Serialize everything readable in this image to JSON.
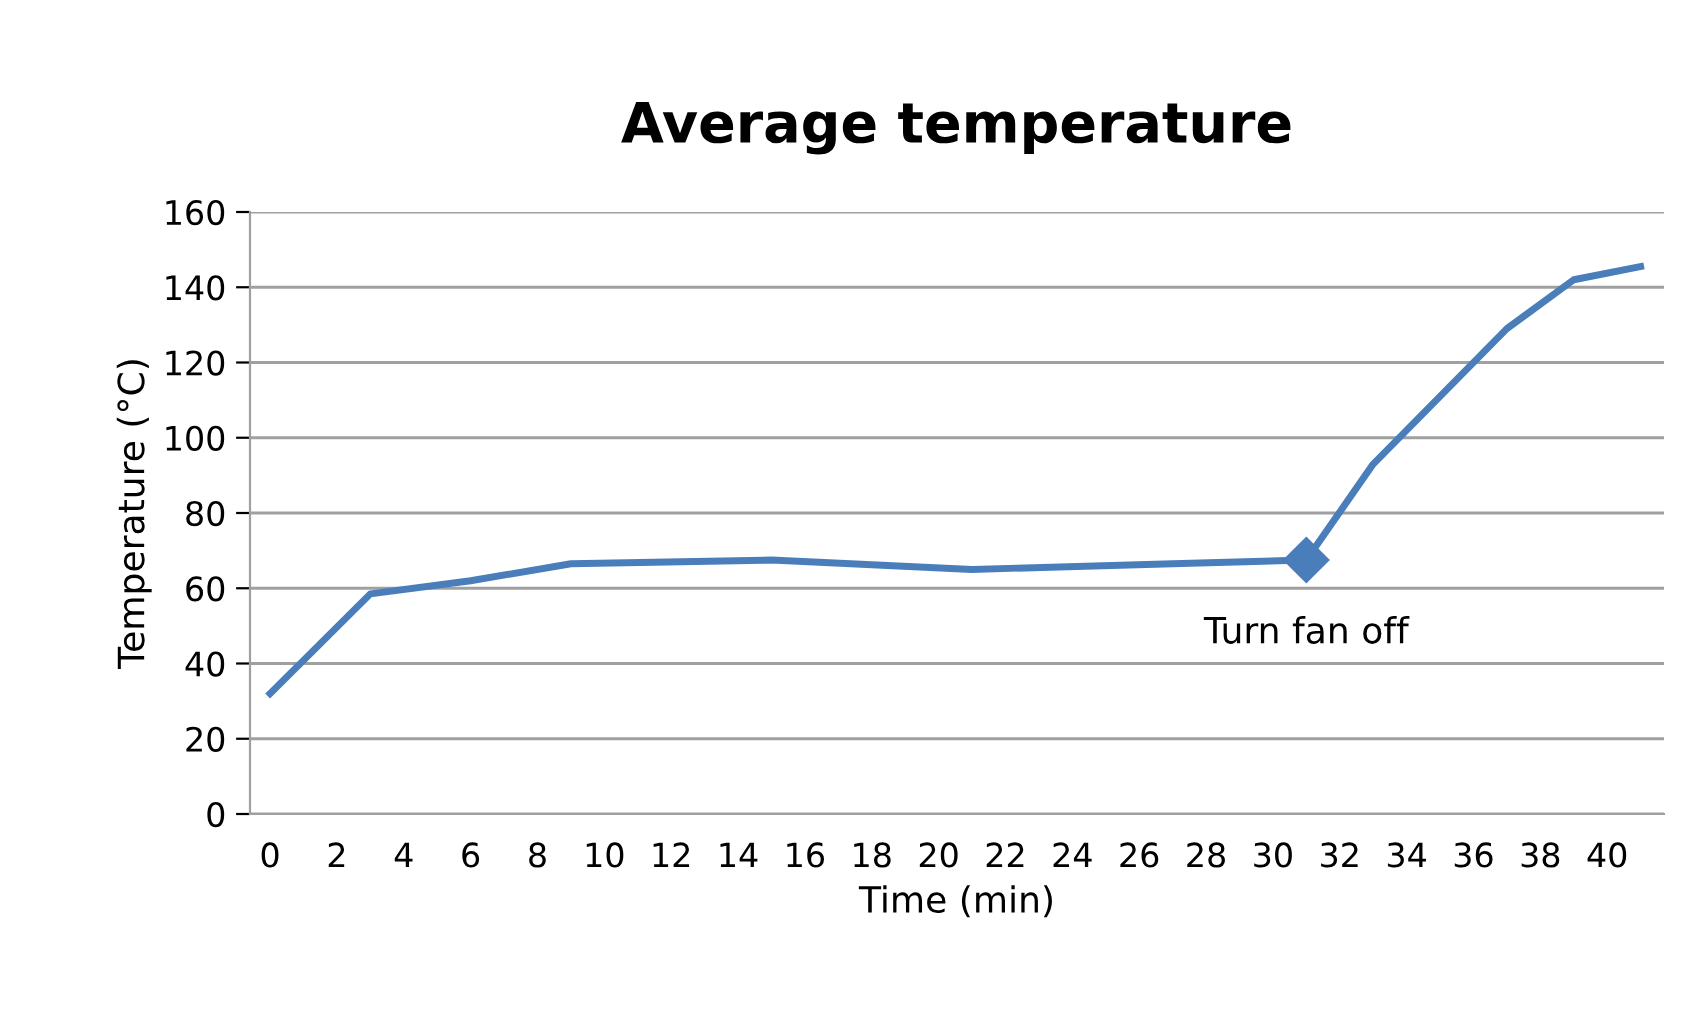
{
  "chart_data": {
    "type": "line",
    "title": "Average temperature",
    "xlabel": "Time (min)",
    "ylabel": "Temperature (°C)",
    "x": [
      0,
      3,
      6,
      9,
      15,
      21,
      27,
      31,
      33,
      35,
      37,
      39,
      41
    ],
    "series": [
      {
        "color": "#4a7ebb",
        "values": [
          32,
          58.5,
          62,
          66.5,
          67.5,
          65,
          66.5,
          67.5,
          93,
          111,
          129,
          142,
          145.5
        ]
      }
    ],
    "xlim": [
      -0.6,
      41.7
    ],
    "xticks": [
      0,
      2,
      4,
      6,
      8,
      10,
      12,
      14,
      16,
      18,
      20,
      22,
      24,
      26,
      28,
      30,
      32,
      34,
      36,
      38,
      40
    ],
    "ylim": [
      0,
      160
    ],
    "yticks": [
      0,
      20,
      40,
      60,
      80,
      100,
      120,
      140,
      160
    ],
    "grid": "y",
    "legend": false,
    "marker": "none",
    "line_style": "solid",
    "annotations": [
      {
        "text": "Turn fan off",
        "x": 31,
        "y": 67.5
      }
    ]
  }
}
